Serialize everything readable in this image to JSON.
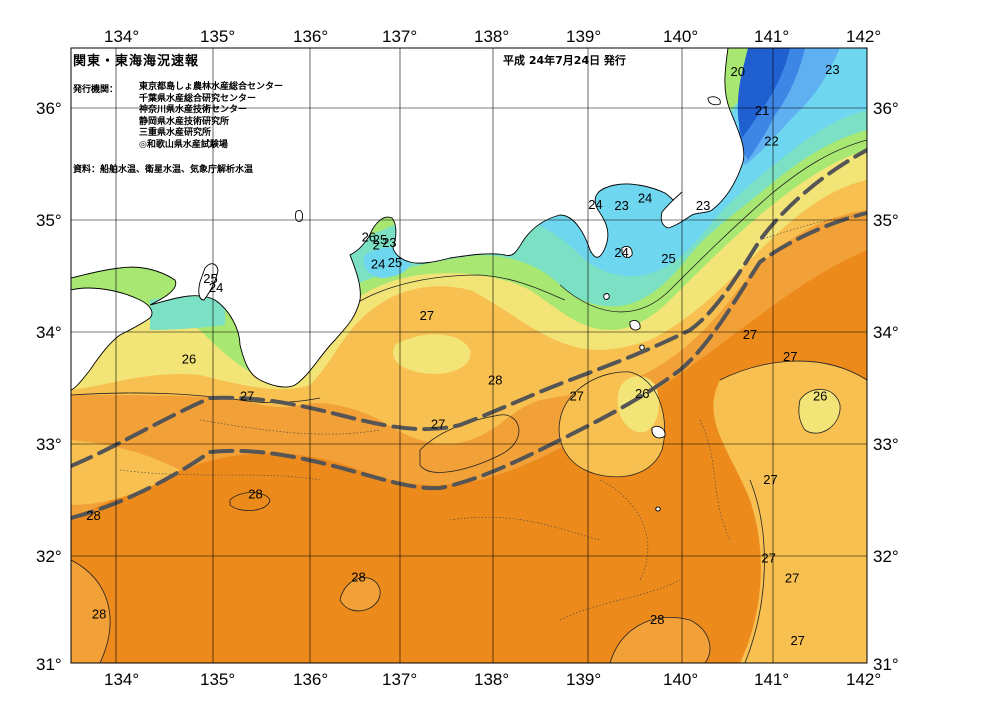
{
  "header": {
    "title": "関東・東海海況速報",
    "date": "平成 24年7月24日 発行",
    "issuers_label": "発行機関：",
    "issuers": [
      "東京都島しょ農林水産総合センター",
      "千葉県水産総合研究センター",
      "神奈川県水産技術センター",
      "静岡県水産技術研究所",
      "三重県水産研究所",
      "◎和歌山県水産試験場"
    ],
    "source_note": "資料：船舶水温、衛星水温、気象庁解析水温"
  },
  "axes": {
    "lon_ticks": [
      "134°",
      "135°",
      "136°",
      "137°",
      "138°",
      "139°",
      "140°",
      "141°",
      "142°"
    ],
    "lat_ticks": [
      "36°",
      "35°",
      "34°",
      "33°",
      "32°",
      "31°"
    ]
  },
  "map": {
    "lon_range": [
      133.5,
      142
    ],
    "lat_range": [
      31,
      36.5
    ],
    "colors": {
      "t20": "#1f5fd0",
      "t21": "#3e86e6",
      "t22": "#5fb0f0",
      "t23": "#6fd6f0",
      "t24": "#7be0c4",
      "t25": "#a8e872",
      "t26": "#f2e476",
      "t27": "#f7c050",
      "t28": "#f2a038",
      "t29": "#ec8a1c",
      "land": "#ffffff",
      "kuroshio": "#555555"
    },
    "isotherm_labels": [
      {
        "text": "20",
        "lon": 140.62,
        "lat": 36.28
      },
      {
        "text": "23",
        "lon": 141.63,
        "lat": 36.3
      },
      {
        "text": "21",
        "lon": 140.88,
        "lat": 35.93
      },
      {
        "text": "22",
        "lon": 140.98,
        "lat": 35.66
      },
      {
        "text": "24",
        "lon": 139.1,
        "lat": 35.09
      },
      {
        "text": "23",
        "lon": 139.38,
        "lat": 35.08
      },
      {
        "text": "24",
        "lon": 139.63,
        "lat": 35.15
      },
      {
        "text": "23",
        "lon": 140.25,
        "lat": 35.08
      },
      {
        "text": "26",
        "lon": 136.68,
        "lat": 34.8
      },
      {
        "text": "25",
        "lon": 136.8,
        "lat": 34.78
      },
      {
        "text": "23",
        "lon": 136.9,
        "lat": 34.75
      },
      {
        "text": "24",
        "lon": 136.78,
        "lat": 34.56
      },
      {
        "text": "25",
        "lon": 136.96,
        "lat": 34.57
      },
      {
        "text": "2",
        "lon": 136.76,
        "lat": 34.73
      },
      {
        "text": "24",
        "lon": 139.38,
        "lat": 34.66
      },
      {
        "text": "25",
        "lon": 139.88,
        "lat": 34.61
      },
      {
        "text": "25",
        "lon": 134.99,
        "lat": 34.43
      },
      {
        "text": "24",
        "lon": 135.05,
        "lat": 34.35
      },
      {
        "text": "27",
        "lon": 137.3,
        "lat": 34.1
      },
      {
        "text": "26",
        "lon": 134.76,
        "lat": 33.71
      },
      {
        "text": "27",
        "lon": 140.75,
        "lat": 33.93
      },
      {
        "text": "27",
        "lon": 141.18,
        "lat": 33.73
      },
      {
        "text": "28",
        "lon": 138.03,
        "lat": 33.52
      },
      {
        "text": "27",
        "lon": 135.38,
        "lat": 33.38
      },
      {
        "text": "27",
        "lon": 138.9,
        "lat": 33.38
      },
      {
        "text": "26",
        "lon": 139.6,
        "lat": 33.4
      },
      {
        "text": "26",
        "lon": 141.5,
        "lat": 33.38
      },
      {
        "text": "27",
        "lon": 137.42,
        "lat": 33.13
      },
      {
        "text": "27",
        "lon": 140.97,
        "lat": 32.63
      },
      {
        "text": "28",
        "lon": 135.47,
        "lat": 32.5
      },
      {
        "text": "28",
        "lon": 133.74,
        "lat": 32.31
      },
      {
        "text": "27",
        "lon": 140.95,
        "lat": 31.93
      },
      {
        "text": "27",
        "lon": 141.2,
        "lat": 31.75
      },
      {
        "text": "28",
        "lon": 136.57,
        "lat": 31.76
      },
      {
        "text": "28",
        "lon": 133.8,
        "lat": 31.43
      },
      {
        "text": "28",
        "lon": 139.76,
        "lat": 31.38
      },
      {
        "text": "27",
        "lon": 141.26,
        "lat": 31.19
      }
    ]
  }
}
